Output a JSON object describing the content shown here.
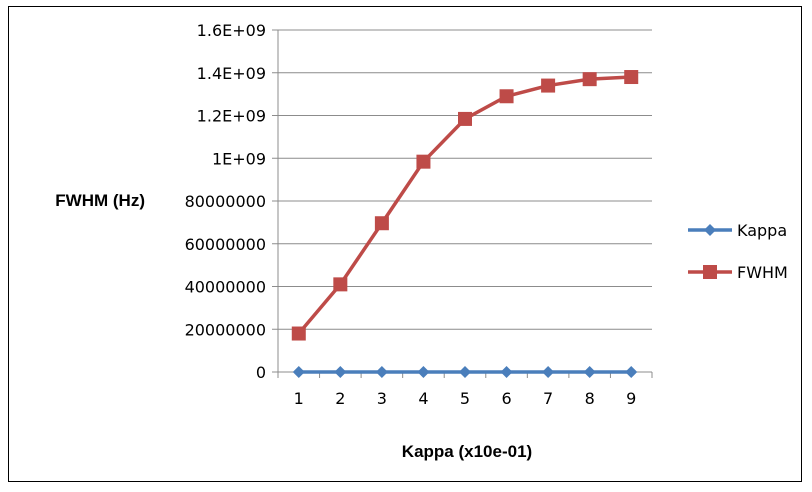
{
  "chart_data": {
    "type": "line",
    "title": "",
    "xlabel": "Kappa (x10e-01)",
    "ylabel": "FWHM (Hz)",
    "categories": [
      "1",
      "2",
      "3",
      "4",
      "5",
      "6",
      "7",
      "8",
      "9"
    ],
    "y_ticks": [
      "0",
      "20000000",
      "40000000",
      "60000000",
      "80000000",
      "1E+09",
      "1.2E+09",
      "1.4E+09",
      "1.6E+09"
    ],
    "ylim": [
      0,
      8
    ],
    "grid": true,
    "legend": "right",
    "series": [
      {
        "name": "Kappa",
        "color": "#4a7ebb",
        "marker": "diamond",
        "values": [
          0,
          0,
          0,
          0,
          0,
          0,
          0,
          0,
          0
        ]
      },
      {
        "name": "FWHM",
        "color": "#be4b48",
        "marker": "square",
        "values": [
          0.9,
          2.05,
          3.48,
          4.92,
          5.92,
          6.45,
          6.7,
          6.85,
          6.9
        ]
      }
    ]
  }
}
